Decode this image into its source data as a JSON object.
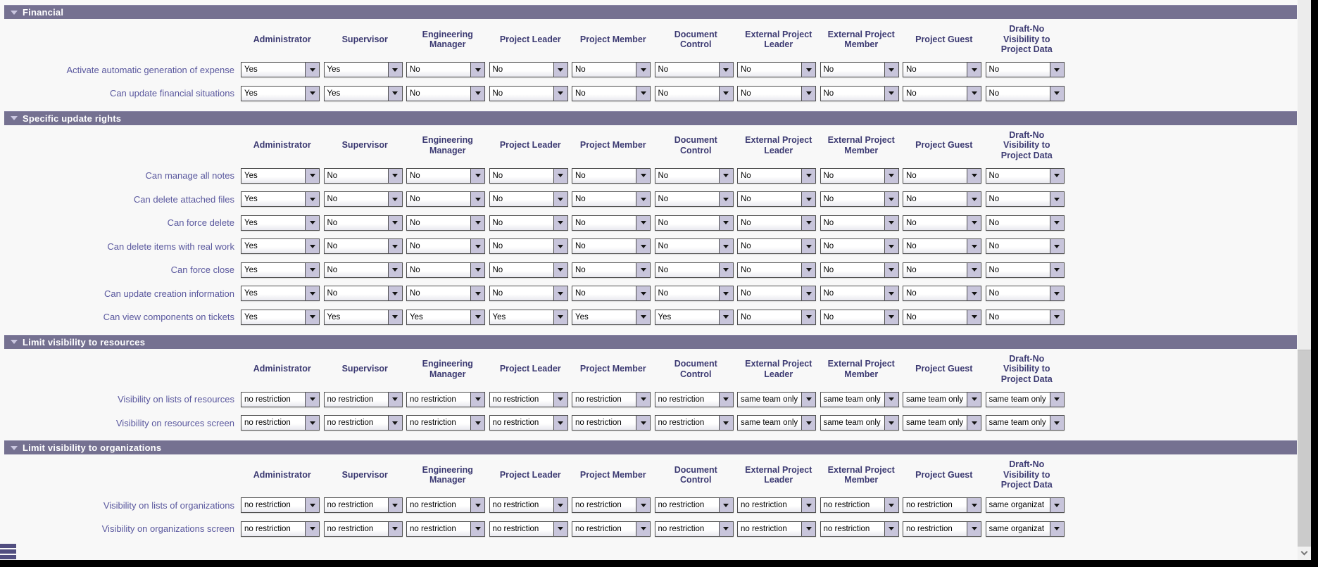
{
  "columns": [
    "Administrator",
    "Supervisor",
    "Engineering\nManager",
    "Project Leader",
    "Project Member",
    "Document\nControl",
    "External Project\nLeader",
    "External Project\nMember",
    "Project Guest",
    "Draft-No\nVisibility to\nProject Data"
  ],
  "sections": [
    {
      "title": "Financial",
      "rows": [
        {
          "label": "Activate automatic generation of expense",
          "values": [
            "Yes",
            "Yes",
            "No",
            "No",
            "No",
            "No",
            "No",
            "No",
            "No",
            "No"
          ]
        },
        {
          "label": "Can update financial situations",
          "values": [
            "Yes",
            "Yes",
            "No",
            "No",
            "No",
            "No",
            "No",
            "No",
            "No",
            "No"
          ]
        }
      ]
    },
    {
      "title": "Specific update rights",
      "rows": [
        {
          "label": "Can manage all notes",
          "values": [
            "Yes",
            "No",
            "No",
            "No",
            "No",
            "No",
            "No",
            "No",
            "No",
            "No"
          ]
        },
        {
          "label": "Can delete attached files",
          "values": [
            "Yes",
            "No",
            "No",
            "No",
            "No",
            "No",
            "No",
            "No",
            "No",
            "No"
          ]
        },
        {
          "label": "Can force delete",
          "values": [
            "Yes",
            "No",
            "No",
            "No",
            "No",
            "No",
            "No",
            "No",
            "No",
            "No"
          ]
        },
        {
          "label": "Can delete items with real work",
          "values": [
            "Yes",
            "No",
            "No",
            "No",
            "No",
            "No",
            "No",
            "No",
            "No",
            "No"
          ]
        },
        {
          "label": "Can force close",
          "values": [
            "Yes",
            "No",
            "No",
            "No",
            "No",
            "No",
            "No",
            "No",
            "No",
            "No"
          ]
        },
        {
          "label": "Can update creation information",
          "values": [
            "Yes",
            "No",
            "No",
            "No",
            "No",
            "No",
            "No",
            "No",
            "No",
            "No"
          ]
        },
        {
          "label": "Can view components on tickets",
          "values": [
            "Yes",
            "Yes",
            "Yes",
            "Yes",
            "Yes",
            "Yes",
            "No",
            "No",
            "No",
            "No"
          ]
        }
      ]
    },
    {
      "title": "Limit visibility to resources",
      "rows": [
        {
          "label": "Visibility on lists of resources",
          "values": [
            "no restriction",
            "no restriction",
            "no restriction",
            "no restriction",
            "no restriction",
            "no restriction",
            "same team only",
            "same team only",
            "same team only",
            "same team only"
          ]
        },
        {
          "label": "Visibility on resources screen",
          "values": [
            "no restriction",
            "no restriction",
            "no restriction",
            "no restriction",
            "no restriction",
            "no restriction",
            "same team only",
            "same team only",
            "same team only",
            "same team only"
          ]
        }
      ]
    },
    {
      "title": "Limit visibility to organizations",
      "rows": [
        {
          "label": "Visibility on lists of organizations",
          "values": [
            "no restriction",
            "no restriction",
            "no restriction",
            "no restriction",
            "no restriction",
            "no restriction",
            "no restriction",
            "no restriction",
            "no restriction",
            "same organizat"
          ]
        },
        {
          "label": "Visibility on organizations screen",
          "values": [
            "no restriction",
            "no restriction",
            "no restriction",
            "no restriction",
            "no restriction",
            "no restriction",
            "no restriction",
            "no restriction",
            "no restriction",
            "same organizat"
          ]
        }
      ]
    }
  ],
  "icons": {
    "section_collapse": "triangle-down",
    "dropdown_arrow": "triangle-down",
    "scrollbar_button": "chevron-down",
    "corner_grip": "three-horizontal-bars"
  },
  "colors": {
    "section_bar_bg": "#757191",
    "section_title_text": "#ffffff",
    "column_header_text": "#3c3a72",
    "row_label_text": "#5a589e",
    "dropdown_arrow_bg": "#c8c5db",
    "dropdown_border": "#4f4f4f",
    "page_bg": "#f8f8f8",
    "frame_border": "#000000",
    "scrollbar_track": "#ececec",
    "scrollbar_thumb": "#cbcbcb",
    "grip_bars": "#514e80"
  }
}
